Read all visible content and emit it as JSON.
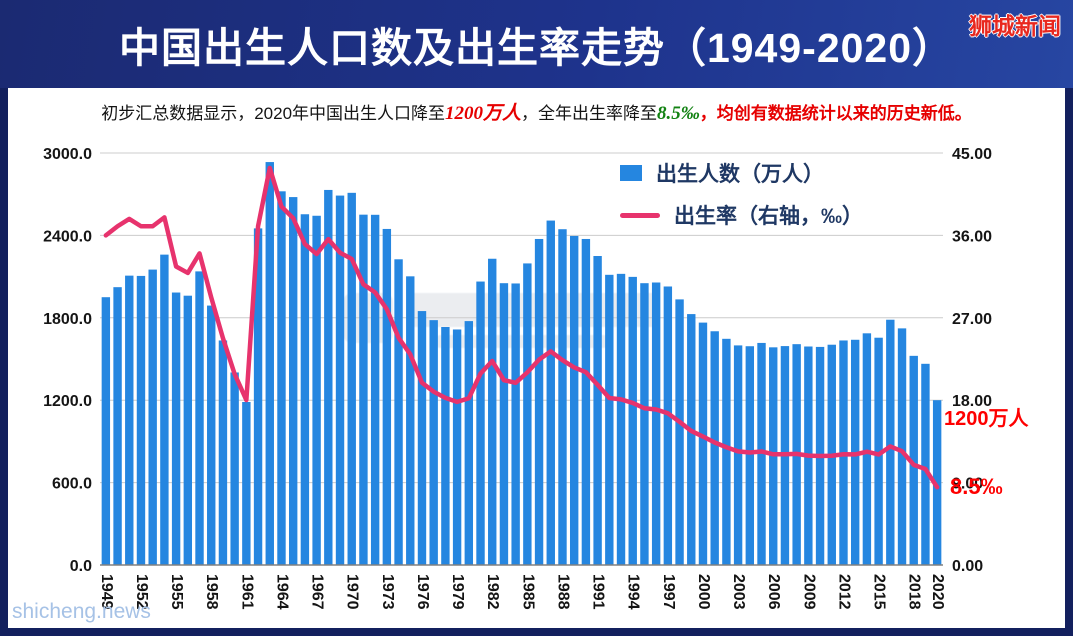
{
  "header": {
    "title": "中国出生人口数及出生率走势（1949-2020）",
    "brand": "狮城新闻"
  },
  "subtitle": {
    "part1": "初步汇总数据显示，2020年中国出生人口降至",
    "highlight_births": "1200万人",
    "part2": "，全年出生率降至",
    "highlight_rate": "8.5‰",
    "comma": "，",
    "part3": "均创有数据统计以来的历史新低。"
  },
  "legend": {
    "bars": "出生人数（万人）",
    "line": "出生率（右轴，‰）"
  },
  "annotations": {
    "births": "1200万人",
    "rate": "8.5‰"
  },
  "footer": {
    "watermark": "shicheng.news"
  },
  "colors": {
    "bar": "#2586e0",
    "line": "#e7336d",
    "annotation": "#fe0000",
    "banner": "#1b2a72"
  },
  "chart_data": {
    "type": "bar",
    "combo_line": true,
    "title": "中国出生人口数及出生率走势（1949-2020）",
    "grid": true,
    "legend_position": "top-right",
    "x_years": [
      1949,
      1950,
      1951,
      1952,
      1953,
      1954,
      1955,
      1956,
      1957,
      1958,
      1959,
      1960,
      1961,
      1962,
      1963,
      1964,
      1965,
      1966,
      1967,
      1968,
      1969,
      1970,
      1971,
      1972,
      1973,
      1974,
      1975,
      1976,
      1977,
      1978,
      1979,
      1980,
      1981,
      1982,
      1983,
      1984,
      1985,
      1986,
      1987,
      1988,
      1989,
      1990,
      1991,
      1992,
      1993,
      1994,
      1995,
      1996,
      1997,
      1998,
      1999,
      2000,
      2001,
      2002,
      2003,
      2004,
      2005,
      2006,
      2007,
      2008,
      2009,
      2010,
      2011,
      2012,
      2013,
      2014,
      2015,
      2016,
      2017,
      2018,
      2019,
      2020
    ],
    "series": [
      {
        "name": "出生人数（万人）",
        "type": "bar",
        "axis": "left",
        "unit": "万人",
        "values": [
          1950,
          2023,
          2107,
          2105,
          2151,
          2260,
          1984,
          1961,
          2138,
          1889,
          1635,
          1402,
          1187,
          2451,
          2934,
          2721,
          2679,
          2554,
          2543,
          2731,
          2690,
          2710,
          2551,
          2550,
          2447,
          2226,
          2102,
          1849,
          1783,
          1733,
          1715,
          1776,
          2064,
          2230,
          2052,
          2050,
          2196,
          2374,
          2508,
          2445,
          2396,
          2374,
          2250,
          2113,
          2120,
          2098,
          2052,
          2057,
          2028,
          1934,
          1827,
          1765,
          1702,
          1647,
          1599,
          1593,
          1617,
          1585,
          1594,
          1608,
          1591,
          1588,
          1604,
          1635,
          1640,
          1687,
          1655,
          1786,
          1723,
          1523,
          1465,
          1200
        ]
      },
      {
        "name": "出生率（右轴，‰）",
        "type": "line",
        "axis": "right",
        "unit": "‰",
        "values": [
          36.0,
          37.0,
          37.8,
          37.0,
          37.0,
          37.97,
          32.6,
          31.9,
          34.03,
          29.22,
          24.78,
          20.86,
          18.02,
          37.01,
          43.37,
          39.14,
          37.88,
          35.05,
          33.96,
          35.59,
          34.11,
          33.43,
          30.65,
          29.77,
          27.93,
          24.82,
          23.01,
          19.91,
          18.93,
          18.25,
          17.82,
          18.21,
          20.91,
          22.28,
          20.19,
          19.9,
          21.04,
          22.43,
          23.33,
          22.37,
          21.58,
          21.06,
          19.68,
          18.24,
          18.09,
          17.7,
          17.12,
          16.98,
          16.57,
          15.64,
          14.64,
          14.03,
          13.38,
          12.86,
          12.41,
          12.29,
          12.4,
          12.09,
          12.1,
          12.14,
          11.95,
          11.9,
          11.93,
          12.1,
          12.08,
          12.37,
          12.07,
          12.95,
          12.43,
          10.94,
          10.48,
          8.5
        ]
      }
    ],
    "left_axis": {
      "min": 0,
      "max": 3000,
      "tick_values": [
        3000,
        2400,
        1800,
        1200,
        600,
        0
      ],
      "tick_labels": [
        "3000.0",
        "2400.0",
        "1800.0",
        "1200.0",
        "600.0",
        "0.0"
      ]
    },
    "right_axis": {
      "min": 0,
      "max": 45,
      "tick_values": [
        45,
        36,
        27,
        18,
        9,
        0
      ],
      "tick_labels": [
        "45.00",
        "36.00",
        "27.00",
        "18.00",
        "9.00",
        "0.00"
      ]
    },
    "x_tick_years": [
      1949,
      1952,
      1955,
      1958,
      1961,
      1964,
      1967,
      1970,
      1973,
      1976,
      1979,
      1982,
      1985,
      1988,
      1991,
      1994,
      1997,
      2000,
      2003,
      2006,
      2009,
      2012,
      2015,
      2018,
      2020
    ]
  }
}
